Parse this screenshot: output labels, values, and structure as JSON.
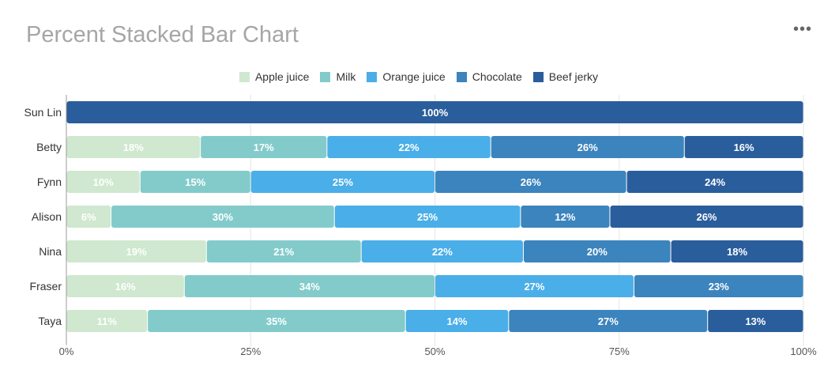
{
  "header": {
    "title": "Percent Stacked Bar Chart",
    "menu_icon": "more-horizontal-icon",
    "menu_glyph": "•••"
  },
  "chart_data": {
    "type": "bar",
    "orientation": "horizontal",
    "stacking": "percent",
    "categories": [
      "Sun Lin",
      "Betty",
      "Fynn",
      "Alison",
      "Nina",
      "Fraser",
      "Taya"
    ],
    "series": [
      {
        "name": "Apple juice",
        "color": "#cfe8cf",
        "label_color": "#ffffff",
        "values": [
          0,
          18,
          10,
          6,
          19,
          16,
          11
        ]
      },
      {
        "name": "Milk",
        "color": "#83cbcb",
        "label_color": "#ffffff",
        "values": [
          0,
          17,
          15,
          30,
          21,
          34,
          35
        ]
      },
      {
        "name": "Orange juice",
        "color": "#4aaee8",
        "label_color": "#ffffff",
        "values": [
          0,
          22,
          25,
          25,
          22,
          27,
          14
        ]
      },
      {
        "name": "Chocolate",
        "color": "#3c84bd",
        "label_color": "#ffffff",
        "values": [
          0,
          26,
          26,
          12,
          20,
          23,
          27
        ]
      },
      {
        "name": "Beef jerky",
        "color": "#2a5d9b",
        "label_color": "#ffffff",
        "values": [
          100,
          16,
          24,
          26,
          18,
          0,
          13
        ]
      }
    ],
    "xlim": [
      0,
      100
    ],
    "xticks": [
      "0%",
      "25%",
      "50%",
      "75%",
      "100%"
    ],
    "xtick_values": [
      0,
      25,
      50,
      75,
      100
    ],
    "grid": true,
    "legend_position": "top"
  }
}
